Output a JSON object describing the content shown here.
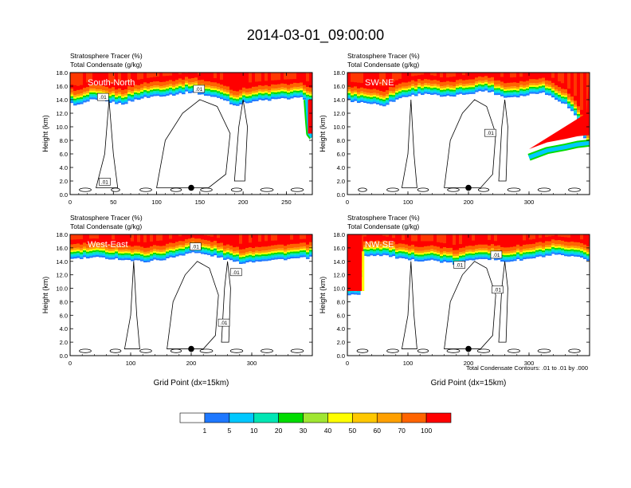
{
  "figure": {
    "title": "2014-03-01_09:00:00",
    "contour_note": "Total Condensate Contours: .01 to .01 by .000"
  },
  "chart_data": [
    {
      "type": "heatmap",
      "panel": "South-North",
      "left_title_1": "Stratosphere Tracer   (%)",
      "left_title_2": "Total Condensate   (g/kg)",
      "ylabel": "Height (km)",
      "xlabel": "",
      "xlim": [
        0,
        280
      ],
      "ylim": [
        0,
        18
      ],
      "xticks": [
        0,
        50,
        100,
        150,
        200,
        250
      ],
      "xtick_labels": [
        "0",
        "50",
        "100",
        "150",
        "200",
        "250"
      ],
      "yticks": [
        0,
        2,
        4,
        6,
        8,
        10,
        12,
        14,
        16,
        18
      ],
      "ytick_labels": [
        "0.0",
        "2.0",
        "4.0",
        "6.0",
        "8.0",
        "10.0",
        "12.0",
        "14.0",
        "16.0",
        "18.0"
      ],
      "marker": {
        "x": 140,
        "y": 1.0
      },
      "contour_labels": [
        {
          "text": ".01",
          "x": 38,
          "y": 14.4
        },
        {
          "text": ".01",
          "x": 149,
          "y": 15.6
        },
        {
          "text": ".01",
          "x": 40,
          "y": 1.9
        }
      ],
      "tropopause": [
        [
          0,
          14.1
        ],
        [
          10,
          13.8
        ],
        [
          25,
          14.6
        ],
        [
          40,
          14.4
        ],
        [
          60,
          14.0
        ],
        [
          80,
          14.8
        ],
        [
          100,
          15.2
        ],
        [
          120,
          15.4
        ],
        [
          140,
          15.8
        ],
        [
          160,
          15.2
        ],
        [
          180,
          14.6
        ],
        [
          190,
          13.8
        ],
        [
          210,
          14.4
        ],
        [
          230,
          14.6
        ],
        [
          250,
          14.8
        ],
        [
          270,
          14.9
        ],
        [
          278,
          14.2
        ],
        [
          280,
          14.0
        ]
      ],
      "intrusion": [
        [
          274,
          14.0
        ],
        [
          276,
          10.5
        ],
        [
          277,
          9.0
        ],
        [
          280,
          8.5
        ]
      ]
    },
    {
      "type": "heatmap",
      "panel": "SW-NE",
      "left_title_1": "Stratosphere Tracer   (%)",
      "left_title_2": "Total Condensate   (g/kg)",
      "ylabel": "Height (km)",
      "xlabel": "",
      "xlim": [
        0,
        400
      ],
      "ylim": [
        0,
        18
      ],
      "xticks": [
        0,
        100,
        200,
        300
      ],
      "xtick_labels": [
        "0",
        "100",
        "200",
        "300"
      ],
      "yticks": [
        0,
        2,
        4,
        6,
        8,
        10,
        12,
        14,
        16,
        18
      ],
      "ytick_labels": [
        "0.0",
        "2.0",
        "4.0",
        "6.0",
        "8.0",
        "10.0",
        "12.0",
        "14.0",
        "16.0",
        "18.0"
      ],
      "marker": {
        "x": 200,
        "y": 1.0
      },
      "contour_labels": [
        {
          "text": ".01",
          "x": 236,
          "y": 9.1
        }
      ],
      "tropopause": [
        [
          0,
          14.5
        ],
        [
          30,
          14.2
        ],
        [
          60,
          13.8
        ],
        [
          90,
          15.0
        ],
        [
          130,
          15.6
        ],
        [
          160,
          15.0
        ],
        [
          190,
          15.4
        ],
        [
          230,
          16.0
        ],
        [
          260,
          15.0
        ],
        [
          290,
          15.2
        ],
        [
          320,
          15.8
        ],
        [
          340,
          15.0
        ],
        [
          360,
          14.0
        ],
        [
          380,
          12.0
        ],
        [
          390,
          9.5
        ],
        [
          395,
          8.0
        ],
        [
          400,
          7.5
        ]
      ],
      "intrusion": [
        [
          300,
          5.5
        ],
        [
          330,
          6.5
        ],
        [
          360,
          7.0
        ],
        [
          380,
          7.4
        ],
        [
          400,
          7.6
        ]
      ]
    },
    {
      "type": "heatmap",
      "panel": "West-East",
      "left_title_1": "Stratosphere Tracer   (%)",
      "left_title_2": "Total Condensate   (g/kg)",
      "ylabel": "Height (km)",
      "xlabel": "Grid Point (dx=15km)",
      "xlim": [
        0,
        400
      ],
      "ylim": [
        0,
        18
      ],
      "xticks": [
        0,
        100,
        200,
        300
      ],
      "xtick_labels": [
        "0",
        "100",
        "200",
        "300"
      ],
      "yticks": [
        0,
        2,
        4,
        6,
        8,
        10,
        12,
        14,
        16,
        18
      ],
      "ytick_labels": [
        "0.0",
        "2.0",
        "4.0",
        "6.0",
        "8.0",
        "10.0",
        "12.0",
        "14.0",
        "16.0",
        "18.0"
      ],
      "marker": {
        "x": 200,
        "y": 1.0
      },
      "contour_labels": [
        {
          "text": ".01",
          "x": 207,
          "y": 16.2
        },
        {
          "text": ".01",
          "x": 274,
          "y": 12.4
        },
        {
          "text": ".01",
          "x": 254,
          "y": 4.9
        }
      ],
      "tropopause": [
        [
          0,
          15.0
        ],
        [
          40,
          15.2
        ],
        [
          80,
          15.0
        ],
        [
          120,
          14.6
        ],
        [
          160,
          15.0
        ],
        [
          200,
          16.0
        ],
        [
          240,
          15.4
        ],
        [
          280,
          14.4
        ],
        [
          320,
          14.8
        ],
        [
          360,
          15.0
        ],
        [
          400,
          15.2
        ]
      ],
      "intrusion": []
    },
    {
      "type": "heatmap",
      "panel": "NW-SE",
      "left_title_1": "Stratosphere Tracer   (%)",
      "left_title_2": "Total Condensate   (g/kg)",
      "ylabel": "Height (km)",
      "xlabel": "Grid Point (dx=15km)",
      "xlim": [
        0,
        400
      ],
      "ylim": [
        0,
        18
      ],
      "xticks": [
        0,
        100,
        200,
        300
      ],
      "xtick_labels": [
        "0",
        "100",
        "200",
        "300"
      ],
      "yticks": [
        0,
        2,
        4,
        6,
        8,
        10,
        12,
        14,
        16,
        18
      ],
      "ytick_labels": [
        "0.0",
        "2.0",
        "4.0",
        "6.0",
        "8.0",
        "10.0",
        "12.0",
        "14.0",
        "16.0",
        "18.0"
      ],
      "marker": {
        "x": 200,
        "y": 1.0
      },
      "contour_labels": [
        {
          "text": ".01",
          "x": 185,
          "y": 13.5
        },
        {
          "text": ".01",
          "x": 246,
          "y": 15.0
        },
        {
          "text": ".01",
          "x": 248,
          "y": 9.8
        }
      ],
      "tropopause": [
        [
          0,
          9.5
        ],
        [
          20,
          9.8
        ],
        [
          28,
          15.5
        ],
        [
          60,
          15.6
        ],
        [
          100,
          14.8
        ],
        [
          140,
          14.8
        ],
        [
          180,
          14.2
        ],
        [
          220,
          15.2
        ],
        [
          260,
          14.6
        ],
        [
          300,
          15.0
        ],
        [
          340,
          15.6
        ],
        [
          380,
          15.2
        ],
        [
          400,
          14.8
        ]
      ],
      "intrusion": []
    }
  ],
  "colorbar": {
    "labels": [
      "1",
      "5",
      "10",
      "20",
      "30",
      "40",
      "50",
      "60",
      "70",
      "100"
    ],
    "colors": [
      "#ffffff",
      "#1e78ff",
      "#00c8ff",
      "#00e6b4",
      "#00dc00",
      "#a0e632",
      "#ffff00",
      "#ffc800",
      "#ffa000",
      "#ff6400",
      "#ff0000"
    ]
  }
}
